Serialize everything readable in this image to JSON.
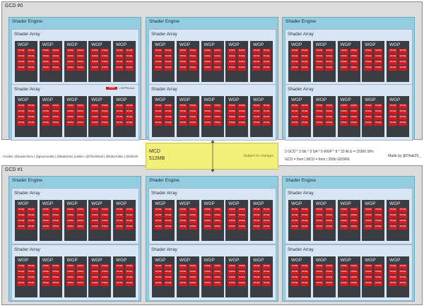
{
  "gcds": [
    {
      "label": "GCD #0",
      "engines": [
        {
          "label": "Shader Engine",
          "arrays": [
            {
              "label": "Shader Array",
              "wgps": [
                "WGP",
                "WGP",
                "WGP",
                "WGP",
                "WGP"
              ]
            },
            {
              "label": "Shader Array",
              "wgps": [
                "WGP",
                "WGP",
                "WGP",
                "WGP",
                "WGP"
              ]
            }
          ]
        },
        {
          "label": "Shader Engine",
          "arrays": [
            {
              "label": "Shader Array",
              "wgps": [
                "WGP",
                "WGP",
                "WGP",
                "WGP",
                "WGP"
              ]
            },
            {
              "label": "Shader Array",
              "wgps": [
                "WGP",
                "WGP",
                "WGP",
                "WGP",
                "WGP"
              ]
            }
          ]
        },
        {
          "label": "Shader Engine",
          "arrays": [
            {
              "label": "Shader Array",
              "wgps": [
                "WGP",
                "WGP",
                "WGP",
                "WGP",
                "WGP"
              ]
            },
            {
              "label": "Shader Array",
              "wgps": [
                "WGP",
                "WGP",
                "WGP",
                "WGP",
                "WGP"
              ]
            }
          ]
        }
      ]
    },
    {
      "label": "GCD #1",
      "engines": [
        {
          "label": "Shader Engine",
          "arrays": [
            {
              "label": "Shader Array",
              "wgps": [
                "WGP",
                "WGP",
                "WGP",
                "WGP",
                "WGP"
              ]
            },
            {
              "label": "Shader Array",
              "wgps": [
                "WGP",
                "WGP",
                "WGP",
                "WGP",
                "WGP"
              ]
            }
          ]
        },
        {
          "label": "Shader Engine",
          "arrays": [
            {
              "label": "Shader Array",
              "wgps": [
                "WGP",
                "WGP",
                "WGP",
                "WGP",
                "WGP"
              ]
            },
            {
              "label": "Shader Array",
              "wgps": [
                "WGP",
                "WGP",
                "WGP",
                "WGP",
                "WGP"
              ]
            }
          ]
        },
        {
          "label": "Shader Engine",
          "arrays": [
            {
              "label": "Shader Array",
              "wgps": [
                "WGP",
                "WGP",
                "WGP",
                "WGP",
                "WGP"
              ]
            },
            {
              "label": "Shader Array",
              "wgps": [
                "WGP",
                "WGP",
                "WGP",
                "WGP",
                "WGP"
              ]
            }
          ]
        }
      ]
    }
  ],
  "shader_label": "SHADE",
  "legend": {
    "shader": "SHADE",
    "text": "= 32 FP32 ALU"
  },
  "mcd": {
    "title": "MCD",
    "size": "512MB",
    "note": "Subject to changes"
  },
  "credits": "Credits: @kopite7kimi | @greymon55 | @Buildzoid_builder | @TDAliRiah | @KittyYukko | @Olin2h",
  "spec_line1": "2 GCD * 3 SE * 2 SA * 5 WGP * 8 * 32 ALU = 15360 SPs",
  "spec_line2": "GCD = 5nm | MCD = 6nm | 256b GDDR6",
  "made_by": "Made by @Olrak29_",
  "colors": {
    "shader": "#cc1c22",
    "wgp": "#3a3e44",
    "engine": "#93cde0",
    "array": "#d8e6f3",
    "mcd": "#f3f07a"
  }
}
